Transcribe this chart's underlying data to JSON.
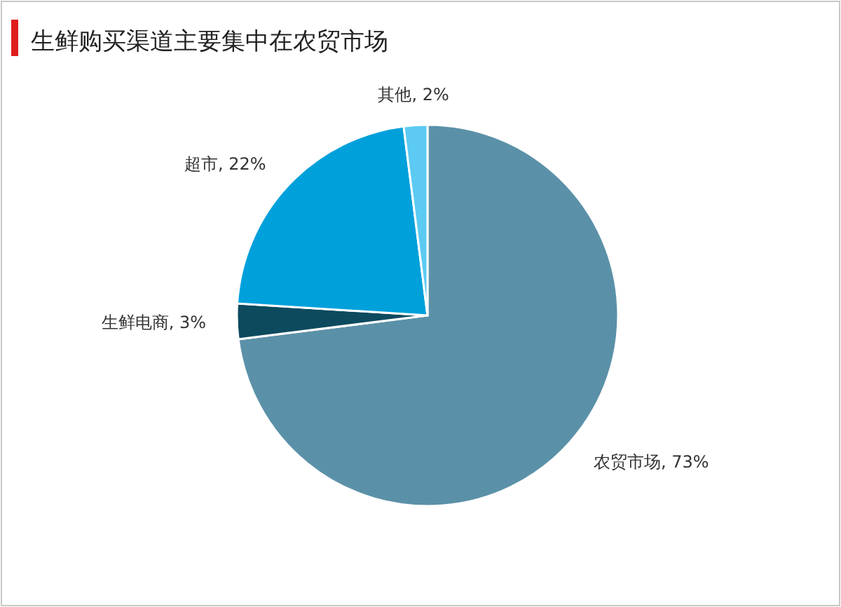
{
  "chart_data": {
    "type": "pie",
    "title": "生鲜购买渠道主要集中在农贸市场",
    "categories": [
      "农贸市场",
      "生鲜电商",
      "超市",
      "其他"
    ],
    "values": [
      73,
      3,
      22,
      2
    ],
    "colors": [
      "#5b91a8",
      "#0d4a5e",
      "#00a0db",
      "#5ccaf2"
    ],
    "value_labels": [
      "73%",
      "3%",
      "22%",
      "2%"
    ]
  }
}
